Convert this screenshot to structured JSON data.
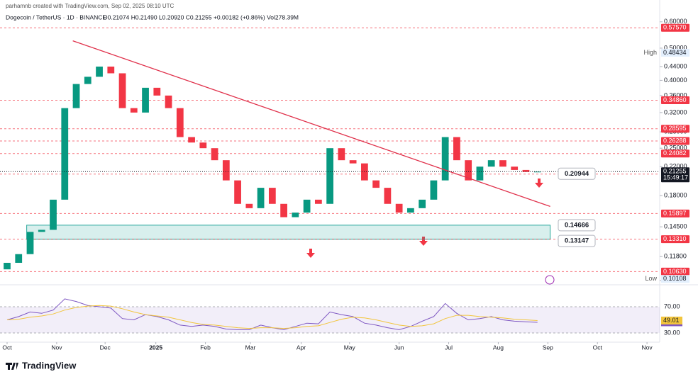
{
  "header": {
    "credit": "parhamnb created with TradingView.com, Sep 02, 2025 08:10 UTC",
    "logo": "TradingView"
  },
  "chart_data": [
    {
      "type": "candlestick",
      "title": "Dogecoin / TetherUS · 1D · BINANCE",
      "subtitle": "O0.21074 H0.21490 L0.20920 C0.21255 +0.00182 (+0.86%) Vol278.39M",
      "log_scale": true,
      "up_color": "#089981",
      "down_color": "#f23645",
      "open": [
        0.108,
        0.113,
        0.12,
        0.14,
        0.142,
        0.175,
        0.33,
        0.39,
        0.41,
        0.44,
        0.42,
        0.33,
        0.32,
        0.38,
        0.36,
        0.33,
        0.27,
        0.26,
        0.25,
        0.23,
        0.2,
        0.17,
        0.165,
        0.19,
        0.17,
        0.155,
        0.16,
        0.175,
        0.17,
        0.25,
        0.23,
        0.225,
        0.2,
        0.19,
        0.17,
        0.16,
        0.165,
        0.175,
        0.2,
        0.27,
        0.23,
        0.2,
        0.22,
        0.23,
        0.22,
        0.215,
        0.212
      ],
      "high": {
        "name": "High",
        "value": 0.48434,
        "label": "0.48434"
      },
      "low": {
        "name": "Low",
        "value": 0.10108,
        "label": "0.10108"
      },
      "close": [
        0.113,
        0.12,
        0.14,
        0.142,
        0.175,
        0.33,
        0.39,
        0.41,
        0.44,
        0.42,
        0.33,
        0.32,
        0.38,
        0.36,
        0.33,
        0.27,
        0.26,
        0.25,
        0.23,
        0.2,
        0.17,
        0.165,
        0.19,
        0.17,
        0.155,
        0.16,
        0.175,
        0.17,
        0.25,
        0.23,
        0.225,
        0.2,
        0.19,
        0.17,
        0.16,
        0.165,
        0.175,
        0.2,
        0.27,
        0.23,
        0.2,
        0.22,
        0.23,
        0.22,
        0.215,
        0.212,
        0.21255
      ],
      "xlim": [
        -0.615,
        56.6
      ],
      "xticks": [
        {
          "value": 0,
          "label": "Oct"
        },
        {
          "value": 4.3,
          "label": "Nov"
        },
        {
          "value": 8.5,
          "label": "Dec"
        },
        {
          "value": 12.9,
          "label": "2025"
        },
        {
          "value": 17.2,
          "label": "Feb"
        },
        {
          "value": 21.1,
          "label": "Mar"
        },
        {
          "value": 25.5,
          "label": "Apr"
        },
        {
          "value": 29.7,
          "label": "May"
        },
        {
          "value": 34.0,
          "label": "Jun"
        },
        {
          "value": 38.3,
          "label": "Jul"
        },
        {
          "value": 42.6,
          "label": "Aug"
        },
        {
          "value": 46.9,
          "label": "Sep"
        },
        {
          "value": 51.2,
          "label": "Oct"
        },
        {
          "value": 55.5,
          "label": "Nov"
        }
      ],
      "ylim": [
        0.098,
        0.658
      ],
      "yticks": [
        {
          "value": 0.6,
          "label": "0.60000"
        },
        {
          "value": 0.5,
          "label": "0.50000"
        },
        {
          "value": 0.44,
          "label": "0.44000"
        },
        {
          "value": 0.4,
          "label": "0.40000"
        },
        {
          "value": 0.36,
          "label": "0.36000"
        },
        {
          "value": 0.32,
          "label": "0.32000"
        },
        {
          "value": 0.28,
          "label": "0.28000"
        },
        {
          "value": 0.25,
          "label": "0.25000"
        },
        {
          "value": 0.22,
          "label": "0.22000"
        },
        {
          "value": 0.18,
          "label": "0.18000"
        },
        {
          "value": 0.145,
          "label": "0.14500"
        },
        {
          "value": 0.118,
          "label": "0.11800"
        },
        {
          "value": 0.1,
          "label": "0.10000"
        }
      ],
      "levels": [
        {
          "value": 0.5757,
          "label": "0.57570"
        },
        {
          "value": 0.3486,
          "label": "0.34860"
        },
        {
          "value": 0.28595,
          "label": "0.28595"
        },
        {
          "value": 0.26288,
          "label": "0.26288"
        },
        {
          "value": 0.24082,
          "label": "0.24082"
        },
        {
          "value": 0.20893,
          "label": "0.20893"
        },
        {
          "value": 0.15897,
          "label": "0.15897"
        },
        {
          "value": 0.1331,
          "label": "0.13310"
        },
        {
          "value": 0.1063,
          "label": "0.10630"
        }
      ],
      "level_color": "#f23645",
      "current_price": {
        "value": 0.21255,
        "label": "0.21255",
        "countdown": "15:49:17"
      },
      "trendline": {
        "x": [
          5.7,
          47.1
        ],
        "y": [
          0.526,
          0.167
        ],
        "color": "#e0314b"
      },
      "zone": {
        "x": [
          1.7,
          47.1
        ],
        "y": [
          0.1331,
          0.14666
        ],
        "color": "#26a69a"
      },
      "annotations": [
        {
          "value": 0.20944,
          "label": "0.20944"
        },
        {
          "value": 0.14666,
          "label": "0.14666"
        },
        {
          "value": 0.13147,
          "label": "0.13147"
        }
      ]
    },
    {
      "type": "line",
      "ylim": [
        21.4,
        94.9
      ],
      "yticks": [
        {
          "value": 70,
          "label": "70.00"
        },
        {
          "value": 30,
          "label": "30.00"
        }
      ],
      "band": [
        30,
        70
      ],
      "series": [
        {
          "color": "#7e57c2",
          "end_label": "46.31",
          "values": [
            50,
            55,
            62,
            60,
            65,
            82,
            78,
            72,
            70,
            68,
            52,
            50,
            58,
            55,
            50,
            42,
            40,
            42,
            40,
            36,
            35,
            35,
            42,
            38,
            35,
            40,
            45,
            44,
            62,
            58,
            55,
            45,
            42,
            38,
            35,
            40,
            48,
            55,
            75,
            60,
            50,
            52,
            55,
            50,
            48,
            47,
            46.31
          ]
        },
        {
          "color": "#f2c53d",
          "end_label": "49.01",
          "values": [
            50,
            51,
            54,
            56,
            59,
            65,
            69,
            71,
            72,
            71,
            67,
            62,
            58,
            56,
            54,
            50,
            46,
            43,
            42,
            40,
            38,
            37,
            38,
            38,
            37,
            38,
            40,
            41,
            46,
            51,
            54,
            53,
            50,
            46,
            42,
            40,
            41,
            44,
            52,
            57,
            57,
            55,
            54,
            53,
            51,
            50,
            49.01
          ]
        }
      ]
    }
  ]
}
